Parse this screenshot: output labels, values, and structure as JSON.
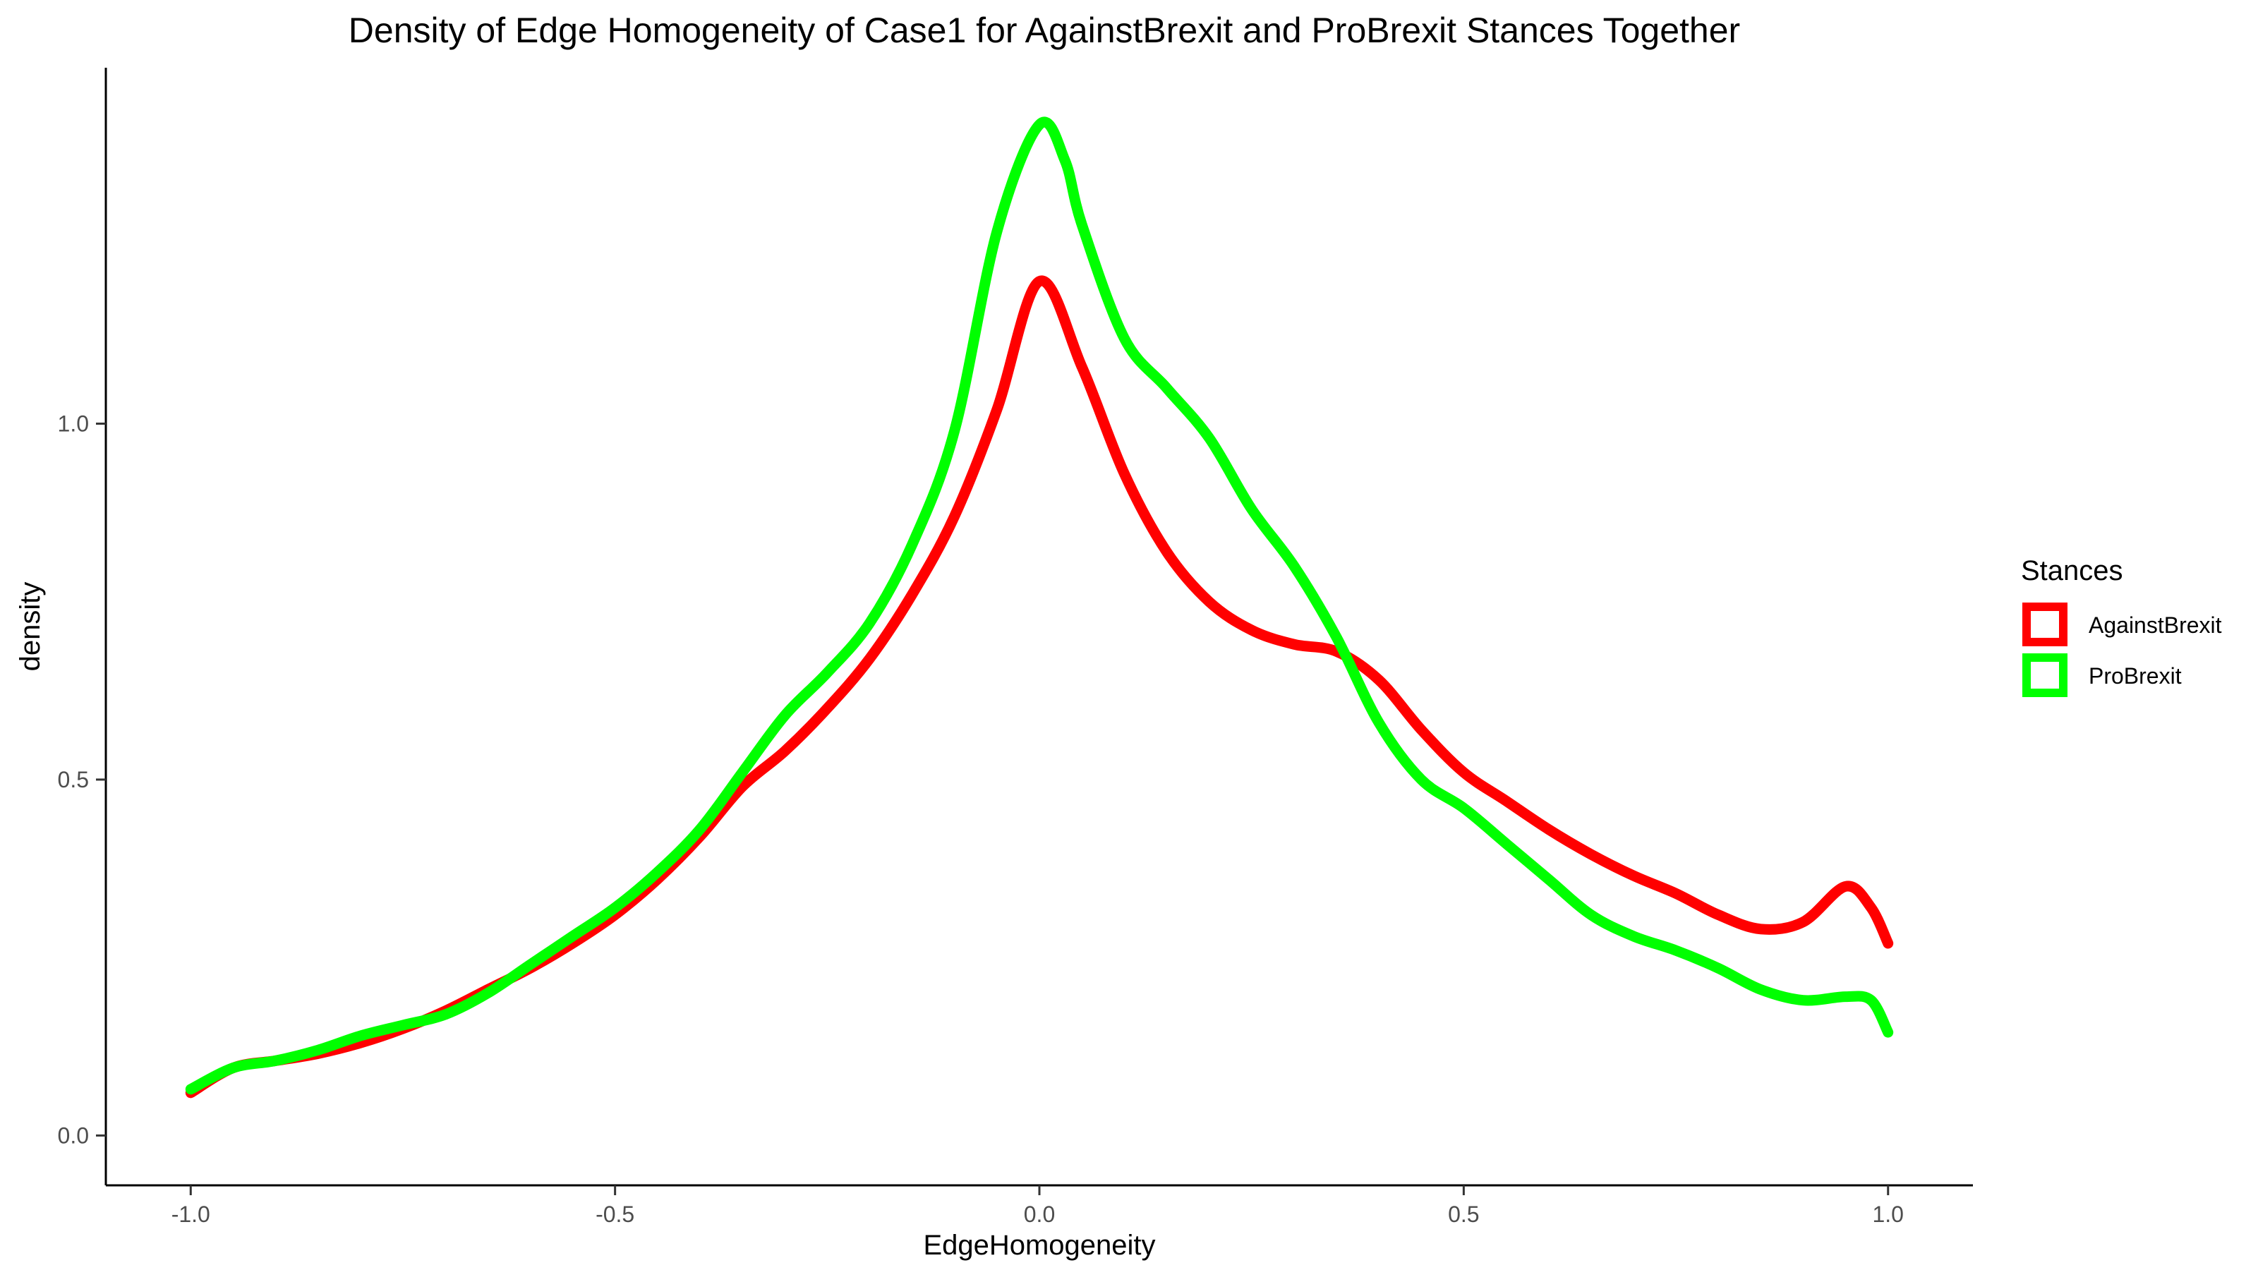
{
  "chart_data": {
    "type": "line",
    "title": "Density of Edge Homogeneity of Case1 for AgainstBrexit and ProBrexit  Stances Together",
    "xlabel": "EdgeHomogeneity",
    "ylabel": "density",
    "xlim": [
      -1.1,
      1.1
    ],
    "ylim": [
      -0.07,
      1.5
    ],
    "x_ticks": [
      -1.0,
      -0.5,
      0.0,
      0.5,
      1.0
    ],
    "x_tick_labels": [
      "-1.0",
      "-0.5",
      "0.0",
      "0.5",
      "1.0"
    ],
    "y_ticks": [
      0.0,
      0.5,
      1.0
    ],
    "y_tick_labels": [
      "0.0",
      "0.5",
      "1.0"
    ],
    "grid": false,
    "legend": {
      "title": "Stances",
      "placement": "right"
    },
    "series": [
      {
        "name": "AgainstBrexit",
        "color": "#ff0000",
        "x": [
          -1.0,
          -0.95,
          -0.9,
          -0.85,
          -0.8,
          -0.75,
          -0.7,
          -0.65,
          -0.6,
          -0.55,
          -0.5,
          -0.45,
          -0.4,
          -0.35,
          -0.3,
          -0.25,
          -0.2,
          -0.15,
          -0.1,
          -0.05,
          0.0,
          0.05,
          0.1,
          0.15,
          0.2,
          0.25,
          0.3,
          0.35,
          0.4,
          0.45,
          0.5,
          0.55,
          0.6,
          0.65,
          0.7,
          0.75,
          0.8,
          0.85,
          0.9,
          0.95,
          0.98,
          1.0
        ],
        "y": [
          0.06,
          0.095,
          0.105,
          0.115,
          0.13,
          0.15,
          0.175,
          0.205,
          0.235,
          0.27,
          0.31,
          0.36,
          0.42,
          0.49,
          0.54,
          0.6,
          0.67,
          0.76,
          0.87,
          1.02,
          1.2,
          1.08,
          0.93,
          0.82,
          0.75,
          0.71,
          0.69,
          0.68,
          0.64,
          0.57,
          0.51,
          0.47,
          0.43,
          0.395,
          0.365,
          0.34,
          0.31,
          0.29,
          0.3,
          0.35,
          0.32,
          0.27
        ]
      },
      {
        "name": "ProBrexit",
        "color": "#00ff00",
        "x": [
          -1.0,
          -0.95,
          -0.9,
          -0.85,
          -0.8,
          -0.75,
          -0.7,
          -0.65,
          -0.6,
          -0.55,
          -0.5,
          -0.45,
          -0.4,
          -0.35,
          -0.3,
          -0.25,
          -0.2,
          -0.15,
          -0.1,
          -0.05,
          0.0,
          0.03,
          0.05,
          0.1,
          0.15,
          0.2,
          0.25,
          0.3,
          0.35,
          0.4,
          0.45,
          0.5,
          0.55,
          0.6,
          0.65,
          0.7,
          0.75,
          0.8,
          0.85,
          0.9,
          0.95,
          0.98,
          1.0
        ],
        "y": [
          0.065,
          0.095,
          0.105,
          0.12,
          0.14,
          0.155,
          0.17,
          0.2,
          0.24,
          0.28,
          0.32,
          0.37,
          0.43,
          0.51,
          0.59,
          0.65,
          0.72,
          0.83,
          0.99,
          1.27,
          1.42,
          1.37,
          1.28,
          1.12,
          1.05,
          0.98,
          0.88,
          0.8,
          0.7,
          0.58,
          0.5,
          0.46,
          0.41,
          0.36,
          0.31,
          0.28,
          0.26,
          0.235,
          0.205,
          0.19,
          0.195,
          0.19,
          0.145
        ]
      }
    ]
  }
}
